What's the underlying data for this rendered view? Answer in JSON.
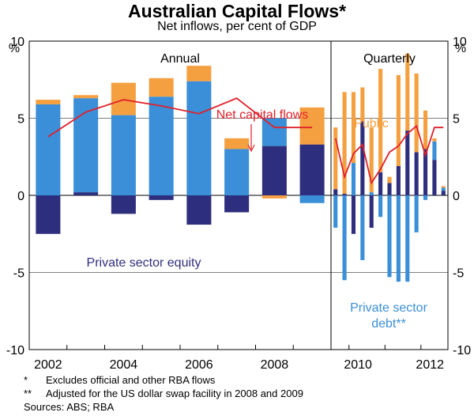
{
  "header": {
    "title": "Australian Capital Flows*",
    "subtitle": "Net inflows, per cent of GDP"
  },
  "chart_data": {
    "type": "bar",
    "title": "Australian Capital Flows*",
    "subtitle": "Net inflows, per cent of GDP",
    "y_unit_left": "%",
    "y_unit_right": "%",
    "ylim": [
      -10,
      10
    ],
    "y_ticks": [
      10,
      5,
      0,
      -5,
      -10
    ],
    "x_ticks": [
      "2002",
      "2004",
      "2006",
      "2008",
      "2010",
      "2012"
    ],
    "grid": true,
    "panels": {
      "annual": "Annual",
      "quarterly": "Quarterly"
    },
    "colors": {
      "public": "#f5a040",
      "private_sector_debt": "#3a8fd8",
      "private_sector_equity": "#2e2e7e",
      "net_capital_flows": "#e0202a"
    },
    "annual": {
      "categories": [
        "2002",
        "2003",
        "2004",
        "2005",
        "2006",
        "2007",
        "2008",
        "2009"
      ],
      "series": [
        {
          "name": "Private sector equity",
          "values": [
            -2.5,
            0.2,
            -1.2,
            -0.3,
            -1.9,
            -1.1,
            3.2,
            3.3
          ]
        },
        {
          "name": "Private sector debt**",
          "values": [
            5.9,
            6.1,
            5.2,
            6.4,
            7.4,
            3.0,
            1.8,
            -0.5
          ]
        },
        {
          "name": "Public",
          "values": [
            0.3,
            0.2,
            2.1,
            1.2,
            1.0,
            0.7,
            -0.2,
            2.4
          ]
        }
      ],
      "net_capital_flows": [
        3.8,
        5.4,
        6.2,
        5.8,
        5.3,
        6.3,
        4.4,
        4.4
      ]
    },
    "quarterly": {
      "categories": [
        "2009Q3",
        "2009Q4",
        "2010Q1",
        "2010Q2",
        "2010Q3",
        "2010Q4",
        "2011Q1",
        "2011Q2",
        "2011Q3",
        "2011Q4",
        "2012Q1",
        "2012Q2",
        "2012Q3"
      ],
      "series": [
        {
          "name": "Private sector equity",
          "values": [
            0.4,
            0.1,
            -2.5,
            4.8,
            -2.1,
            1.5,
            0.8,
            1.9,
            4.2,
            2.8,
            3.0,
            2.3,
            0.3
          ]
        },
        {
          "name": "Private sector debt**",
          "values": [
            -2.1,
            -5.5,
            2.1,
            -4.2,
            0.2,
            -1.4,
            -5.3,
            -5.6,
            -5.6,
            -2.4,
            -0.3,
            1.2,
            0.2
          ]
        },
        {
          "name": "Public",
          "values": [
            4.0,
            6.6,
            4.6,
            2.2,
            4.2,
            6.7,
            0.4,
            5.9,
            5.0,
            5.1,
            2.5,
            0.2,
            0.1
          ]
        }
      ],
      "net_capital_flows": [
        3.7,
        1.2,
        2.7,
        3.3,
        0.8,
        1.7,
        2.8,
        3.2,
        4.0,
        4.5,
        2.6,
        4.4,
        4.4
      ]
    },
    "annotations": {
      "net_capital_flows": "Net capital flows",
      "public": "Public",
      "private_sector_equity": "Private sector equity",
      "private_sector_debt_line1": "Private sector",
      "private_sector_debt_line2": "debt**"
    }
  },
  "notes": {
    "note1_mark": "*",
    "note1_text": "Excludes official and other RBA flows",
    "note2_mark": "**",
    "note2_text": "Adjusted for the US dollar swap facility in 2008 and 2009",
    "sources": "Sources: ABS; RBA"
  }
}
